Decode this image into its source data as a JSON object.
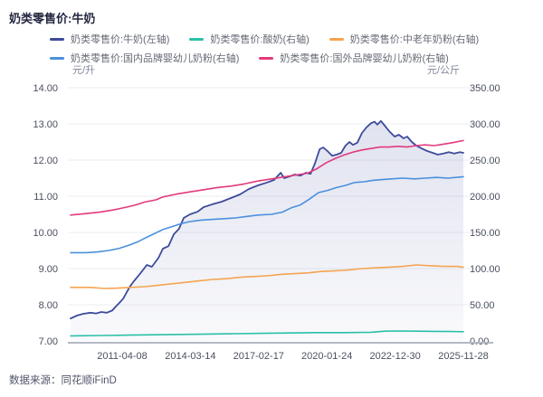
{
  "title": "奶类零售价:牛奶",
  "footer": {
    "label": "数据来源：同花顺iFinD"
  },
  "legend": {
    "rows": [
      [
        0,
        1,
        2
      ],
      [
        3,
        4
      ]
    ]
  },
  "axes": {
    "left_unit": "元/升",
    "right_unit": "元/公斤",
    "left_ticks": [
      "14.00",
      "13.00",
      "12.00",
      "11.00",
      "10.00",
      "9.00",
      "8.00",
      "7.00"
    ],
    "right_ticks": [
      "350.00",
      "300.00",
      "250.00",
      "200.00",
      "150.00",
      "100.00",
      "50.00",
      "0.00"
    ],
    "x_ticks": [
      "2011-04-08",
      "2014-03-14",
      "2017-02-17",
      "2020-01-24",
      "2022-12-30",
      "2025-11-28"
    ]
  },
  "colors": {
    "grid": "#ebedf2",
    "axis_line": "#b3b8c4",
    "tick_label": "#4b505f"
  },
  "chart_data": {
    "type": "line",
    "title": "奶类零售价:牛奶",
    "left_axis": {
      "label": "元/升",
      "range": [
        7,
        14
      ]
    },
    "right_axis": {
      "label": "元/公斤",
      "range": [
        0,
        350
      ]
    },
    "x_axis": {
      "tick_labels": [
        "2011-04-08",
        "2014-03-14",
        "2017-02-17",
        "2020-01-24",
        "2022-12-30",
        "2025-11-28"
      ],
      "grid": false
    },
    "legend_position": "top-left",
    "grid": true,
    "series": [
      {
        "name": "奶类零售价:牛奶(左轴)",
        "axis": "left",
        "color": "#3e4b9b",
        "area": true,
        "width": 1.8,
        "points": [
          [
            0.0,
            7.62
          ],
          [
            0.016,
            7.7
          ],
          [
            0.032,
            7.75
          ],
          [
            0.051,
            7.78
          ],
          [
            0.065,
            7.76
          ],
          [
            0.078,
            7.8
          ],
          [
            0.092,
            7.78
          ],
          [
            0.106,
            7.84
          ],
          [
            0.115,
            7.95
          ],
          [
            0.124,
            8.05
          ],
          [
            0.134,
            8.17
          ],
          [
            0.143,
            8.35
          ],
          [
            0.152,
            8.52
          ],
          [
            0.161,
            8.65
          ],
          [
            0.171,
            8.78
          ],
          [
            0.182,
            8.93
          ],
          [
            0.194,
            9.1
          ],
          [
            0.207,
            9.05
          ],
          [
            0.224,
            9.3
          ],
          [
            0.235,
            9.55
          ],
          [
            0.249,
            9.62
          ],
          [
            0.263,
            9.95
          ],
          [
            0.276,
            10.1
          ],
          [
            0.288,
            10.4
          ],
          [
            0.304,
            10.5
          ],
          [
            0.323,
            10.57
          ],
          [
            0.339,
            10.7
          ],
          [
            0.362,
            10.78
          ],
          [
            0.385,
            10.85
          ],
          [
            0.408,
            10.95
          ],
          [
            0.431,
            11.05
          ],
          [
            0.454,
            11.2
          ],
          [
            0.477,
            11.3
          ],
          [
            0.5,
            11.38
          ],
          [
            0.518,
            11.45
          ],
          [
            0.535,
            11.65
          ],
          [
            0.544,
            11.5
          ],
          [
            0.558,
            11.55
          ],
          [
            0.571,
            11.6
          ],
          [
            0.585,
            11.57
          ],
          [
            0.599,
            11.65
          ],
          [
            0.611,
            11.62
          ],
          [
            0.622,
            11.9
          ],
          [
            0.634,
            12.3
          ],
          [
            0.643,
            12.35
          ],
          [
            0.654,
            12.25
          ],
          [
            0.666,
            12.12
          ],
          [
            0.677,
            12.15
          ],
          [
            0.689,
            12.2
          ],
          [
            0.7,
            12.4
          ],
          [
            0.71,
            12.5
          ],
          [
            0.719,
            12.42
          ],
          [
            0.73,
            12.48
          ],
          [
            0.742,
            12.75
          ],
          [
            0.753,
            12.9
          ],
          [
            0.765,
            13.02
          ],
          [
            0.774,
            13.06
          ],
          [
            0.781,
            12.98
          ],
          [
            0.79,
            13.08
          ],
          [
            0.8,
            12.95
          ],
          [
            0.811,
            12.8
          ],
          [
            0.825,
            12.65
          ],
          [
            0.836,
            12.7
          ],
          [
            0.848,
            12.6
          ],
          [
            0.857,
            12.65
          ],
          [
            0.869,
            12.5
          ],
          [
            0.88,
            12.4
          ],
          [
            0.894,
            12.32
          ],
          [
            0.908,
            12.25
          ],
          [
            0.922,
            12.2
          ],
          [
            0.935,
            12.15
          ],
          [
            0.949,
            12.18
          ],
          [
            0.963,
            12.22
          ],
          [
            0.977,
            12.18
          ],
          [
            0.991,
            12.22
          ],
          [
            1.0,
            12.2
          ]
        ]
      },
      {
        "name": "奶类零售价:酸奶(右轴)",
        "axis": "right",
        "color": "#2cbfa7",
        "area": false,
        "width": 1.6,
        "points": [
          [
            0.0,
            7.0
          ],
          [
            0.074,
            7.5
          ],
          [
            0.143,
            8.0
          ],
          [
            0.212,
            8.5
          ],
          [
            0.281,
            9.0
          ],
          [
            0.35,
            9.5
          ],
          [
            0.419,
            10.0
          ],
          [
            0.488,
            10.5
          ],
          [
            0.558,
            11.0
          ],
          [
            0.627,
            11.5
          ],
          [
            0.696,
            11.5
          ],
          [
            0.765,
            12.0
          ],
          [
            0.8,
            13.5
          ],
          [
            0.834,
            13.8
          ],
          [
            0.88,
            13.5
          ],
          [
            0.926,
            13.2
          ],
          [
            0.972,
            13.0
          ],
          [
            1.0,
            12.7
          ]
        ]
      },
      {
        "name": "奶类零售价:中老年奶粉(右轴)",
        "axis": "right",
        "color": "#f5a450",
        "area": false,
        "width": 1.6,
        "points": [
          [
            0.0,
            74
          ],
          [
            0.051,
            74
          ],
          [
            0.085,
            72.5
          ],
          [
            0.12,
            73
          ],
          [
            0.154,
            74
          ],
          [
            0.189,
            75
          ],
          [
            0.224,
            77
          ],
          [
            0.258,
            79
          ],
          [
            0.293,
            81
          ],
          [
            0.327,
            83
          ],
          [
            0.362,
            85
          ],
          [
            0.396,
            86
          ],
          [
            0.431,
            88
          ],
          [
            0.465,
            89
          ],
          [
            0.5,
            90
          ],
          [
            0.535,
            92
          ],
          [
            0.569,
            93
          ],
          [
            0.604,
            94
          ],
          [
            0.638,
            96
          ],
          [
            0.673,
            97
          ],
          [
            0.707,
            98
          ],
          [
            0.742,
            100
          ],
          [
            0.776,
            101
          ],
          [
            0.811,
            102
          ],
          [
            0.846,
            103
          ],
          [
            0.88,
            105
          ],
          [
            0.915,
            104
          ],
          [
            0.949,
            103
          ],
          [
            0.984,
            103
          ],
          [
            1.0,
            102
          ]
        ]
      },
      {
        "name": "奶类零售价:国内品牌婴幼儿奶粉(右轴)",
        "axis": "right",
        "color": "#4a90dd",
        "area": false,
        "width": 1.6,
        "points": [
          [
            0.0,
            122
          ],
          [
            0.039,
            122
          ],
          [
            0.069,
            123
          ],
          [
            0.097,
            125
          ],
          [
            0.124,
            128
          ],
          [
            0.152,
            133
          ],
          [
            0.171,
            137
          ],
          [
            0.189,
            142
          ],
          [
            0.212,
            148
          ],
          [
            0.235,
            154
          ],
          [
            0.258,
            158
          ],
          [
            0.281,
            162
          ],
          [
            0.304,
            165
          ],
          [
            0.332,
            167
          ],
          [
            0.362,
            168
          ],
          [
            0.392,
            169
          ],
          [
            0.419,
            170
          ],
          [
            0.447,
            172
          ],
          [
            0.477,
            174
          ],
          [
            0.512,
            175
          ],
          [
            0.539,
            178
          ],
          [
            0.562,
            184
          ],
          [
            0.585,
            188
          ],
          [
            0.608,
            196
          ],
          [
            0.631,
            205
          ],
          [
            0.654,
            208
          ],
          [
            0.677,
            212
          ],
          [
            0.7,
            215
          ],
          [
            0.723,
            219
          ],
          [
            0.747,
            220
          ],
          [
            0.77,
            222
          ],
          [
            0.793,
            223
          ],
          [
            0.816,
            224
          ],
          [
            0.846,
            225
          ],
          [
            0.876,
            224
          ],
          [
            0.903,
            225
          ],
          [
            0.931,
            226
          ],
          [
            0.961,
            225
          ],
          [
            1.0,
            227
          ]
        ]
      },
      {
        "name": "奶类零售价:国外品牌婴幼儿奶粉(右轴)",
        "axis": "right",
        "color": "#e23a7d",
        "area": false,
        "width": 1.6,
        "points": [
          [
            0.0,
            174
          ],
          [
            0.039,
            176
          ],
          [
            0.074,
            178
          ],
          [
            0.108,
            181
          ],
          [
            0.143,
            185
          ],
          [
            0.166,
            188
          ],
          [
            0.189,
            192
          ],
          [
            0.217,
            195
          ],
          [
            0.235,
            199
          ],
          [
            0.27,
            203
          ],
          [
            0.304,
            206
          ],
          [
            0.339,
            209
          ],
          [
            0.373,
            212
          ],
          [
            0.408,
            214
          ],
          [
            0.442,
            217
          ],
          [
            0.477,
            221
          ],
          [
            0.512,
            224
          ],
          [
            0.535,
            226
          ],
          [
            0.558,
            228
          ],
          [
            0.581,
            230
          ],
          [
            0.604,
            232
          ],
          [
            0.627,
            238
          ],
          [
            0.65,
            246
          ],
          [
            0.673,
            252
          ],
          [
            0.696,
            257
          ],
          [
            0.719,
            261
          ],
          [
            0.742,
            264
          ],
          [
            0.765,
            266
          ],
          [
            0.788,
            268
          ],
          [
            0.811,
            268
          ],
          [
            0.834,
            269
          ],
          [
            0.857,
            268
          ],
          [
            0.88,
            270
          ],
          [
            0.903,
            271
          ],
          [
            0.926,
            270
          ],
          [
            0.949,
            272
          ],
          [
            0.972,
            274
          ],
          [
            1.0,
            277
          ]
        ]
      }
    ]
  }
}
